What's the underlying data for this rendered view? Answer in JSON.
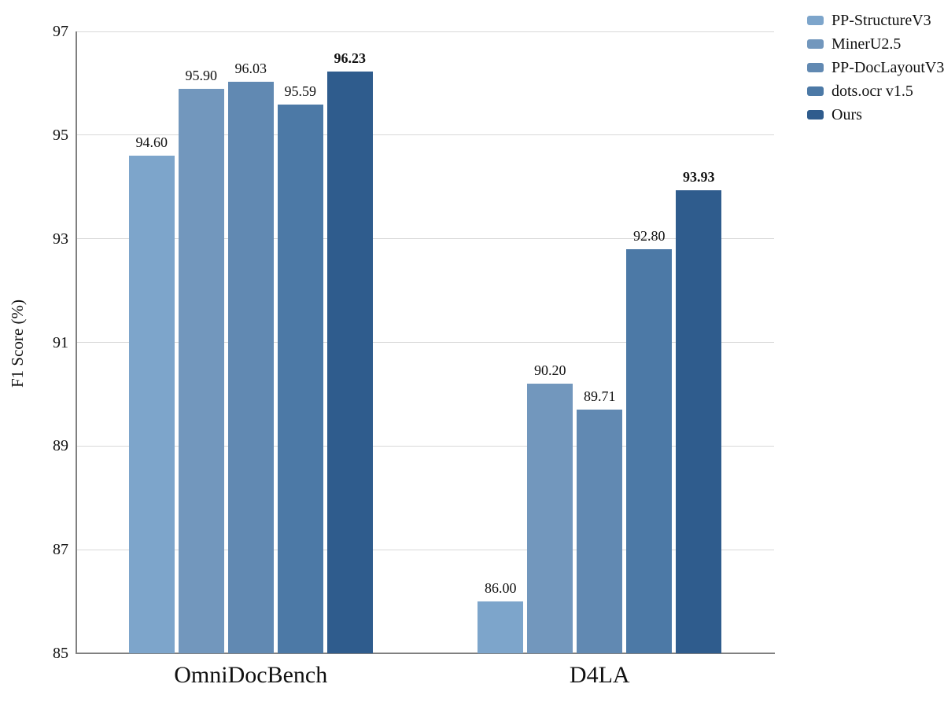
{
  "chart_data": {
    "type": "bar",
    "title": "",
    "xlabel": "",
    "ylabel": "F1 Score (%)",
    "ylim": [
      85,
      97
    ],
    "yticks": [
      85,
      87,
      89,
      91,
      93,
      95,
      97
    ],
    "grid": true,
    "grid_color": "#d9d9d9",
    "axis_color": "#808080",
    "legend_position": "top-right-outside",
    "categories": [
      "OmniDocBench",
      "D4LA"
    ],
    "series": [
      {
        "name": "PP-StructureV3",
        "color": "#7da5cb",
        "values": [
          94.6,
          86.0
        ],
        "bold_labels": false
      },
      {
        "name": "MinerU2.5",
        "color": "#7297bd",
        "values": [
          95.9,
          90.2
        ],
        "bold_labels": false
      },
      {
        "name": "PP-DocLayoutV3",
        "color": "#6189b2",
        "values": [
          96.03,
          89.71
        ],
        "bold_labels": false
      },
      {
        "name": "dots.ocr v1.5",
        "color": "#4c79a6",
        "values": [
          95.59,
          92.8
        ],
        "bold_labels": false
      },
      {
        "name": "Ours",
        "color": "#2f5c8d",
        "values": [
          96.23,
          93.93
        ],
        "bold_labels": true
      }
    ],
    "value_labels_decimals": 2
  }
}
